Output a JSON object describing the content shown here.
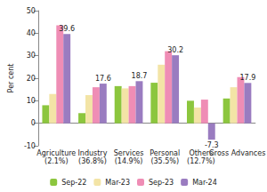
{
  "chart_data": {
    "type": "bar",
    "y_label": "Per cent",
    "categories": [
      "Agriculture (2.1%)",
      "Industry (36.8%)",
      "Services (14.9%)",
      "Personal (35.5%)",
      "Others (12.7%)",
      "Gross Advances"
    ],
    "series": [
      {
        "name": "Sep-22",
        "color": "#8cc63e",
        "values": [
          8,
          4.5,
          16.5,
          18,
          10,
          11
        ]
      },
      {
        "name": "Mar-23",
        "color": "#f3e4a6",
        "values": [
          13,
          12.5,
          15.5,
          26,
          7,
          16
        ]
      },
      {
        "name": "Sep-23",
        "color": "#ef8db5",
        "values": [
          43.5,
          16,
          16.5,
          32,
          10.5,
          20.5
        ]
      },
      {
        "name": "Mar-24",
        "color": "#9a7cc0",
        "values": [
          39.6,
          17.6,
          18.7,
          30.2,
          -7.3,
          17.9
        ],
        "data_labels": true
      }
    ],
    "ylim": [
      -10,
      50
    ],
    "yticks": [
      -10,
      0,
      10,
      20,
      30,
      40,
      50
    ],
    "grid": false,
    "legend": "bottom"
  }
}
